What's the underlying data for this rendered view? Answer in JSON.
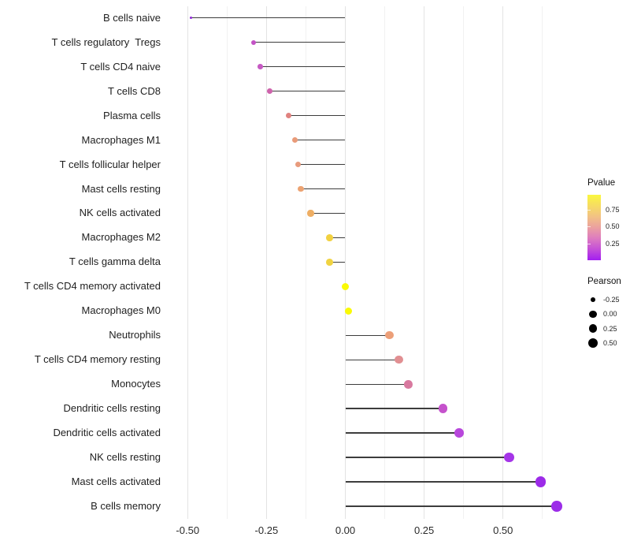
{
  "chart_data": {
    "type": "scatter",
    "subtype": "lollipop",
    "title": "",
    "xlabel": "",
    "ylabel": "",
    "xlim": [
      -0.58,
      0.75
    ],
    "grid": "vertical major and minor, light gray, no axis lines",
    "legend_position": "right",
    "x_axis": {
      "ticks": [
        {
          "label": "-0.50",
          "value": -0.5
        },
        {
          "label": "-0.25",
          "value": -0.25
        },
        {
          "label": "0.00",
          "value": 0.0
        },
        {
          "label": "0.25",
          "value": 0.25
        },
        {
          "label": "0.50",
          "value": 0.5
        }
      ],
      "minor_step": 0.125
    },
    "points": [
      {
        "label": "B cells naive",
        "pearson": -0.49,
        "color": "#9330D8"
      },
      {
        "label": "T cells regulatory  Tregs",
        "pearson": -0.29,
        "color": "#C353C5"
      },
      {
        "label": "T cells CD4 naive",
        "pearson": -0.27,
        "color": "#C65AC3"
      },
      {
        "label": "T cells CD8",
        "pearson": -0.24,
        "color": "#CE63AC"
      },
      {
        "label": "Plasma cells",
        "pearson": -0.18,
        "color": "#E0827F"
      },
      {
        "label": "Macrophages M1",
        "pearson": -0.16,
        "color": "#E99B79"
      },
      {
        "label": "T cells follicular helper",
        "pearson": -0.15,
        "color": "#E89B7D"
      },
      {
        "label": "Mast cells resting",
        "pearson": -0.14,
        "color": "#ECA372"
      },
      {
        "label": "NK cells activated",
        "pearson": -0.11,
        "color": "#EEAE64"
      },
      {
        "label": "Macrophages M2",
        "pearson": -0.05,
        "color": "#F2D140"
      },
      {
        "label": "T cells gamma delta",
        "pearson": -0.05,
        "color": "#F0D342"
      },
      {
        "label": "T cells CD4 memory activated",
        "pearson": 0.0,
        "color": "#FAFA05"
      },
      {
        "label": "Macrophages M0",
        "pearson": 0.01,
        "color": "#FAFA05"
      },
      {
        "label": "Neutrophils",
        "pearson": 0.14,
        "color": "#EC9F78"
      },
      {
        "label": "T cells CD4 memory resting",
        "pearson": 0.17,
        "color": "#E18F92"
      },
      {
        "label": "Monocytes",
        "pearson": 0.2,
        "color": "#D8799F"
      },
      {
        "label": "Dendritic cells resting",
        "pearson": 0.31,
        "color": "#C552CC"
      },
      {
        "label": "Dendritic cells activated",
        "pearson": 0.36,
        "color": "#B847DC"
      },
      {
        "label": "NK cells resting",
        "pearson": 0.52,
        "color": "#A535E8"
      },
      {
        "label": "Mast cells activated",
        "pearson": 0.62,
        "color": "#9C2BE8"
      },
      {
        "label": "B cells memory",
        "pearson": 0.67,
        "color": "#9C2DE8"
      }
    ],
    "legends": {
      "pvalue": {
        "title": "Pvalue",
        "range": [
          0,
          0.97
        ],
        "ticks": [
          {
            "label": "0.75",
            "value": 0.75
          },
          {
            "label": "0.50",
            "value": 0.5
          },
          {
            "label": "0.25",
            "value": 0.25
          }
        ],
        "gradient_top_to_bottom": [
          "#FAF73E",
          "#F6DC63",
          "#F2C284",
          "#EBA0A0",
          "#DD7BC0",
          "#C44FD8",
          "#A21EF0"
        ]
      },
      "pearson": {
        "title": "Pearson",
        "items": [
          {
            "label": "-0.25",
            "value": -0.25
          },
          {
            "label": "0.00",
            "value": 0.0
          },
          {
            "label": "0.25",
            "value": 0.25
          },
          {
            "label": "0.50",
            "value": 0.5
          }
        ]
      }
    }
  }
}
